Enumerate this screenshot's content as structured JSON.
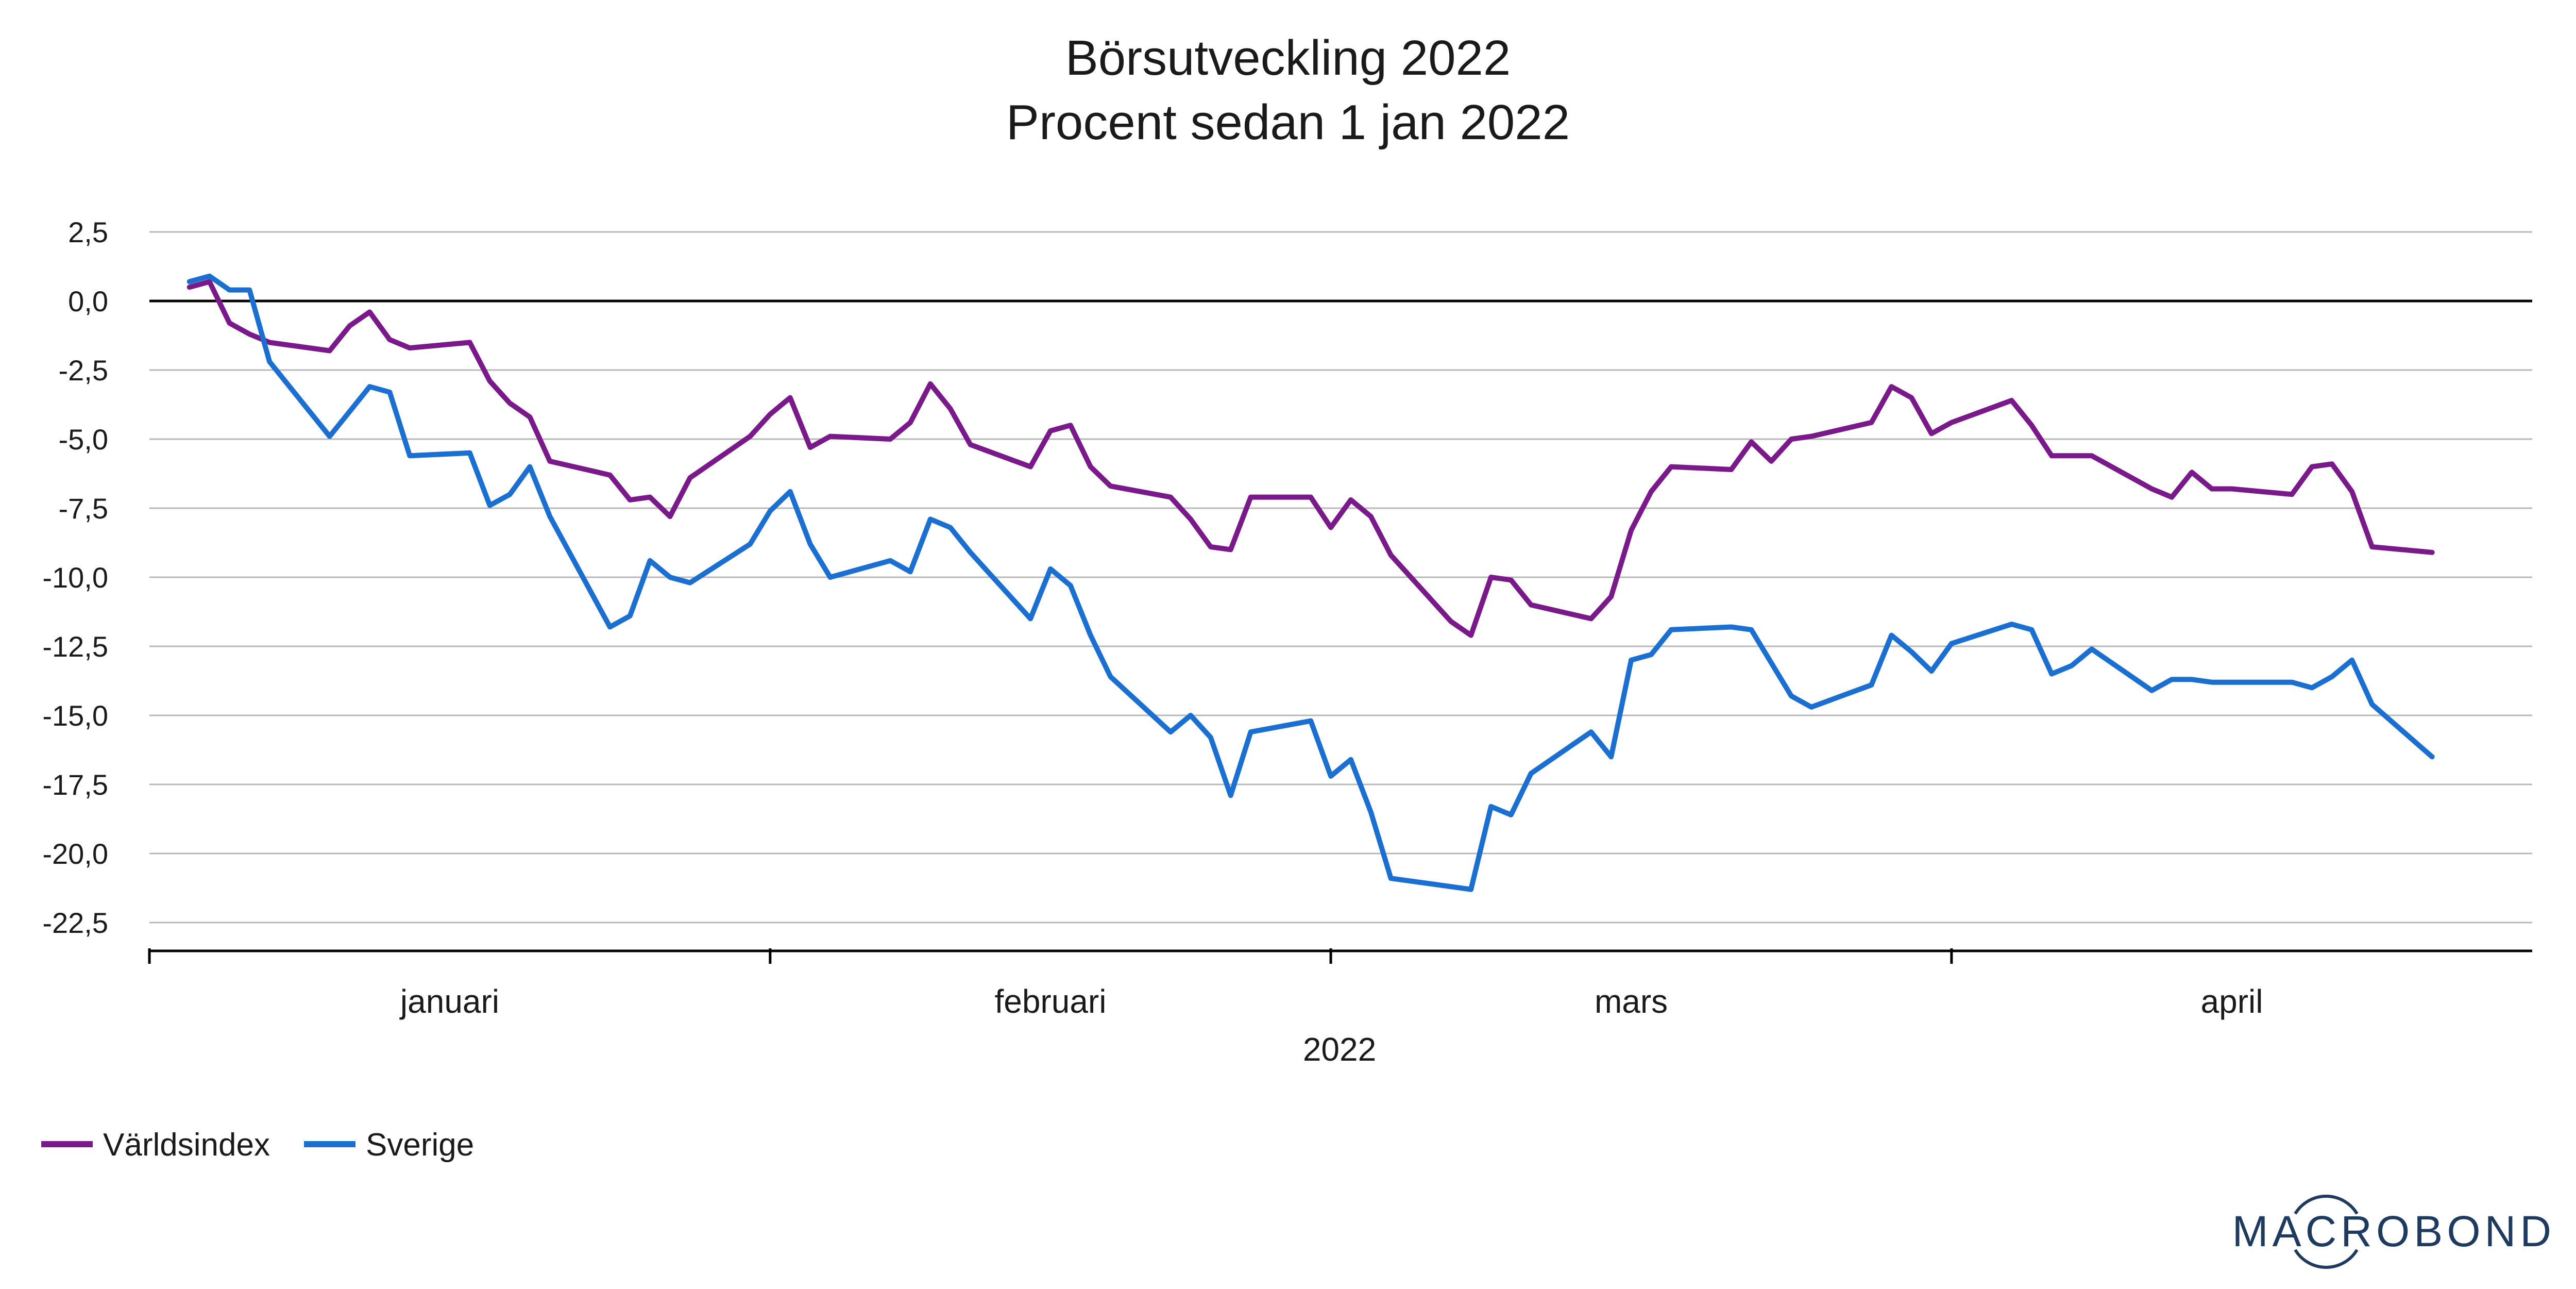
{
  "chart_data": {
    "type": "line",
    "title": "Börsutveckling 2022",
    "subtitle": "Procent sedan 1 jan 2022",
    "xlabel": "2022",
    "ylabel": "",
    "ylim": [
      -22.5,
      2.5
    ],
    "yticks": [
      2.5,
      0.0,
      -2.5,
      -5.0,
      -7.5,
      -10.0,
      -12.5,
      -15.0,
      -17.5,
      -20.0,
      -22.5
    ],
    "ytick_labels": [
      "2,5",
      "0,0",
      "-2,5",
      "-5,0",
      "-7,5",
      "-10,0",
      "-12,5",
      "-15,0",
      "-17,5",
      "-20,0",
      "-22,5"
    ],
    "x_month_labels": [
      "januari",
      "februari",
      "mars",
      "april"
    ],
    "grid": true,
    "legend_position": "bottom-left",
    "x": [
      "2022-01-03",
      "2022-01-04",
      "2022-01-05",
      "2022-01-06",
      "2022-01-07",
      "2022-01-10",
      "2022-01-11",
      "2022-01-12",
      "2022-01-13",
      "2022-01-14",
      "2022-01-17",
      "2022-01-18",
      "2022-01-19",
      "2022-01-20",
      "2022-01-21",
      "2022-01-24",
      "2022-01-25",
      "2022-01-26",
      "2022-01-27",
      "2022-01-28",
      "2022-01-31",
      "2022-02-01",
      "2022-02-02",
      "2022-02-03",
      "2022-02-04",
      "2022-02-07",
      "2022-02-08",
      "2022-02-09",
      "2022-02-10",
      "2022-02-11",
      "2022-02-14",
      "2022-02-15",
      "2022-02-16",
      "2022-02-17",
      "2022-02-18",
      "2022-02-21",
      "2022-02-22",
      "2022-02-23",
      "2022-02-24",
      "2022-02-25",
      "2022-02-28",
      "2022-03-01",
      "2022-03-02",
      "2022-03-03",
      "2022-03-04",
      "2022-03-07",
      "2022-03-08",
      "2022-03-09",
      "2022-03-10",
      "2022-03-11",
      "2022-03-14",
      "2022-03-15",
      "2022-03-16",
      "2022-03-17",
      "2022-03-18",
      "2022-03-21",
      "2022-03-22",
      "2022-03-23",
      "2022-03-24",
      "2022-03-25",
      "2022-03-28",
      "2022-03-29",
      "2022-03-30",
      "2022-03-31",
      "2022-04-01",
      "2022-04-04",
      "2022-04-05",
      "2022-04-06",
      "2022-04-07",
      "2022-04-08",
      "2022-04-11",
      "2022-04-12",
      "2022-04-13",
      "2022-04-14",
      "2022-04-15",
      "2022-04-18",
      "2022-04-19",
      "2022-04-20",
      "2022-04-21",
      "2022-04-22",
      "2022-04-25"
    ],
    "series": [
      {
        "name": "Världsindex",
        "color": "#7a1a8a",
        "values": [
          0.5,
          0.7,
          -0.8,
          -1.2,
          -1.5,
          -1.8,
          -0.9,
          -0.4,
          -1.4,
          -1.7,
          -1.5,
          -2.9,
          -3.7,
          -4.2,
          -5.8,
          -6.3,
          -7.2,
          -7.1,
          -7.8,
          -6.4,
          -4.9,
          -4.1,
          -3.5,
          -5.3,
          -4.9,
          -5.0,
          -4.4,
          -3.0,
          -3.9,
          -5.2,
          -6.0,
          -4.7,
          -4.5,
          -6.0,
          -6.7,
          -7.1,
          -7.9,
          -8.9,
          -9.0,
          -7.1,
          -7.1,
          -8.2,
          -7.2,
          -7.8,
          -9.2,
          -11.6,
          -12.1,
          -10.0,
          -10.1,
          -11.0,
          -11.5,
          -10.7,
          -8.3,
          -6.9,
          -6.0,
          -6.1,
          -5.1,
          -5.8,
          -5.0,
          -4.9,
          -4.4,
          -3.1,
          -3.5,
          -4.8,
          -4.4,
          -3.6,
          -4.5,
          -5.6,
          -5.6,
          -5.6,
          -6.8,
          -7.1,
          -6.2,
          -6.8,
          -6.8,
          -7.0,
          -6.0,
          -5.9,
          -6.9,
          -8.9,
          -9.1
        ]
      },
      {
        "name": "Sverige",
        "color": "#1a6fd0",
        "values": [
          0.7,
          0.9,
          0.4,
          0.4,
          -2.2,
          -4.9,
          -4.0,
          -3.1,
          -3.3,
          -5.6,
          -5.5,
          -7.4,
          -7.0,
          -6.0,
          -7.8,
          -11.8,
          -11.4,
          -9.4,
          -10.0,
          -10.2,
          -8.8,
          -7.6,
          -6.9,
          -8.8,
          -10.0,
          -9.4,
          -9.8,
          -7.9,
          -8.2,
          -9.1,
          -11.5,
          -9.7,
          -10.3,
          -12.1,
          -13.6,
          -15.6,
          -15.0,
          -15.8,
          -17.9,
          -15.6,
          -15.2,
          -17.2,
          -16.6,
          -18.5,
          -20.9,
          -21.2,
          -21.3,
          -18.3,
          -18.6,
          -17.1,
          -15.6,
          -16.5,
          -13.0,
          -12.8,
          -11.9,
          -11.8,
          -11.9,
          -13.1,
          -14.3,
          -14.7,
          -13.9,
          -12.1,
          -12.7,
          -13.4,
          -12.4,
          -11.7,
          -11.9,
          -13.5,
          -13.2,
          -12.6,
          -14.1,
          -13.7,
          -13.7,
          -13.8,
          -13.8,
          -13.8,
          -14.0,
          -13.6,
          -13.0,
          -14.6,
          -16.5
        ]
      }
    ]
  },
  "logo": {
    "text": "MACROBOND"
  }
}
